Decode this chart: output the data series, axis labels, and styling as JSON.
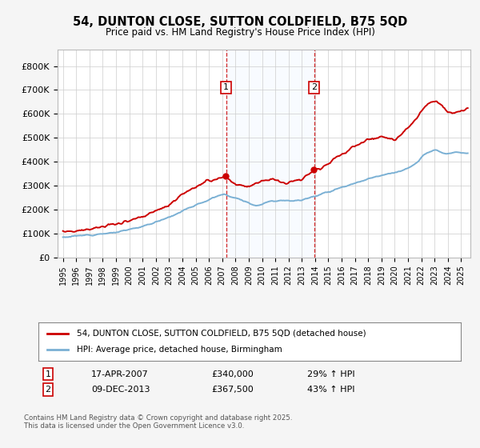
{
  "title_line1": "54, DUNTON CLOSE, SUTTON COLDFIELD, B75 5QD",
  "title_line2": "Price paid vs. HM Land Registry's House Price Index (HPI)",
  "ytick_labels": [
    "£0",
    "£100K",
    "£200K",
    "£300K",
    "£400K",
    "£500K",
    "£600K",
    "£700K",
    "£800K"
  ],
  "yticks": [
    0,
    100000,
    200000,
    300000,
    400000,
    500000,
    600000,
    700000,
    800000
  ],
  "ylim_max": 870000,
  "red_color": "#cc0000",
  "blue_color": "#7ab0d4",
  "highlight_color": "#ddeeff",
  "sale1_x": 2007.29,
  "sale1_price": 340000,
  "sale2_x": 2013.92,
  "sale2_price": 367500,
  "shade_x1": 2007.29,
  "shade_x2": 2013.92,
  "xlim_min": 1994.6,
  "xlim_max": 2025.7,
  "legend_label_red": "54, DUNTON CLOSE, SUTTON COLDFIELD, B75 5QD (detached house)",
  "legend_label_blue": "HPI: Average price, detached house, Birmingham",
  "ann1_date": "17-APR-2007",
  "ann1_price": "£340,000",
  "ann1_pct": "29% ↑ HPI",
  "ann2_date": "09-DEC-2013",
  "ann2_price": "£367,500",
  "ann2_pct": "43% ↑ HPI",
  "footer": "Contains HM Land Registry data © Crown copyright and database right 2025.\nThis data is licensed under the Open Government Licence v3.0.",
  "bg_color": "#f5f5f5",
  "plot_bg": "#ffffff"
}
